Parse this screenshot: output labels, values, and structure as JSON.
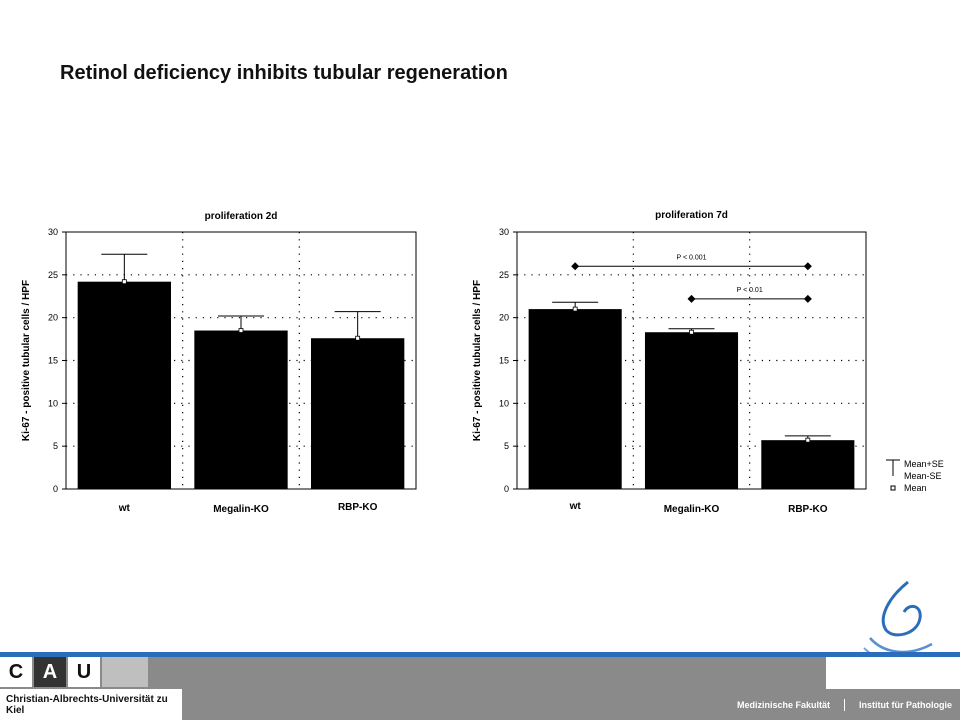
{
  "slide": {
    "title": "Retinol deficiency inhibits tubular regeneration"
  },
  "chart_data": [
    {
      "type": "bar",
      "title": "proliferation 2d",
      "ylabel": "Ki-67 - positive tubular cells / HPF",
      "xlabel": "",
      "categories": [
        "wt",
        "Megalin-KO",
        "RBP-KO"
      ],
      "values": [
        24.2,
        18.5,
        17.6
      ],
      "error_upper": [
        27.4,
        20.2,
        20.7
      ],
      "error_lower": [
        24.2,
        18.5,
        17.6
      ],
      "ylim": [
        0,
        30
      ],
      "yticks": [
        "0",
        "5",
        "10",
        "15",
        "20",
        "25",
        "30"
      ],
      "grid": "dotted",
      "annotations": []
    },
    {
      "type": "bar",
      "title": "proliferation 7d",
      "ylabel": "Ki-67 - positive tubular cells / HPF",
      "xlabel": "",
      "categories": [
        "wt",
        "Megalin-KO",
        "RBP-KO"
      ],
      "values": [
        21.0,
        18.3,
        5.7
      ],
      "error_upper": [
        21.8,
        18.7,
        6.2
      ],
      "error_lower": [
        21.0,
        18.3,
        5.7
      ],
      "ylim": [
        0,
        30
      ],
      "yticks": [
        "0",
        "5",
        "10",
        "15",
        "20",
        "25",
        "30"
      ],
      "grid": "dotted",
      "annotations": [
        {
          "label": "P < 0.001",
          "from": 0,
          "to": 2,
          "y": 26
        },
        {
          "label": "P < 0.01",
          "from": 1,
          "to": 2,
          "y": 22.2
        }
      ]
    }
  ],
  "legend": {
    "items": [
      "Mean+SE",
      "Mean-SE",
      "Mean"
    ]
  },
  "footer": {
    "cau_letters": [
      "C",
      "A",
      "U"
    ],
    "university": "Christian-Albrechts-Universität zu Kiel",
    "faculty": "Medizinische Fakultät",
    "institute": "Institut für Pathologie",
    "colors": {
      "blue": "#2a6ebb",
      "gray": "#8a8a8a"
    }
  }
}
